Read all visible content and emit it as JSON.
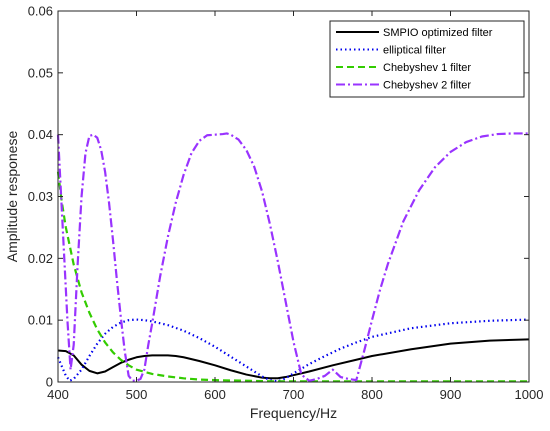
{
  "chart_data": {
    "type": "line",
    "title": "",
    "xlabel": "Frequency/Hz",
    "ylabel": "Amplitude responese",
    "xlim": [
      400,
      1000
    ],
    "ylim": [
      0,
      0.06
    ],
    "xticks": [
      400,
      500,
      600,
      700,
      800,
      900,
      1000
    ],
    "yticks": [
      0,
      0.01,
      0.02,
      0.03,
      0.04,
      0.05,
      0.06
    ],
    "xtick_labels": [
      "400",
      "500",
      "600",
      "700",
      "800",
      "900",
      "1000"
    ],
    "ytick_labels": [
      "0",
      "0.01",
      "0.02",
      "0.03",
      "0.04",
      "0.05",
      "0.06"
    ],
    "grid": false,
    "legend_position": "top-right",
    "series": [
      {
        "name": "SMPIO optimized filter",
        "color": "#000000",
        "style": "solid",
        "x": [
          400,
          410,
          420,
          430,
          440,
          450,
          460,
          470,
          480,
          490,
          500,
          510,
          520,
          530,
          540,
          550,
          560,
          580,
          600,
          620,
          640,
          660,
          670,
          680,
          690,
          700,
          720,
          750,
          780,
          800,
          850,
          900,
          950,
          1000
        ],
        "y": [
          0.0051,
          0.005,
          0.0043,
          0.0028,
          0.0018,
          0.0014,
          0.0017,
          0.0024,
          0.0031,
          0.0036,
          0.004,
          0.0042,
          0.0043,
          0.0043,
          0.0043,
          0.0042,
          0.004,
          0.0034,
          0.0027,
          0.0019,
          0.0012,
          0.0007,
          0.0006,
          0.0006,
          0.0008,
          0.0011,
          0.0017,
          0.0027,
          0.0036,
          0.0042,
          0.0053,
          0.0062,
          0.0067,
          0.0069
        ]
      },
      {
        "name": "elliptical filter",
        "color": "#0000ee",
        "style": "dotted",
        "x": [
          400,
          405,
          410,
          415,
          420,
          430,
          440,
          450,
          460,
          470,
          480,
          490,
          500,
          510,
          520,
          540,
          560,
          580,
          600,
          620,
          640,
          660,
          670,
          680,
          690,
          700,
          720,
          740,
          760,
          780,
          800,
          850,
          900,
          950,
          1000
        ],
        "y": [
          0.004,
          0.0025,
          0.001,
          0.0002,
          0.0005,
          0.002,
          0.0042,
          0.0062,
          0.0078,
          0.0089,
          0.0096,
          0.01,
          0.0101,
          0.01,
          0.0098,
          0.0092,
          0.0083,
          0.0071,
          0.0057,
          0.0041,
          0.0025,
          0.0009,
          0.0003,
          0.0001,
          0.0006,
          0.0014,
          0.0029,
          0.0042,
          0.0054,
          0.0064,
          0.0073,
          0.0087,
          0.0095,
          0.0099,
          0.0101
        ]
      },
      {
        "name": "Chebyshev 1 filter",
        "color": "#33cc00",
        "style": "dashed",
        "x": [
          400,
          405,
          410,
          420,
          430,
          440,
          450,
          460,
          470,
          480,
          490,
          500,
          520,
          540,
          560,
          580,
          600,
          640,
          680,
          700,
          750,
          800,
          850,
          900,
          950,
          1000
        ],
        "y": [
          0.034,
          0.029,
          0.025,
          0.019,
          0.0145,
          0.0112,
          0.0085,
          0.0064,
          0.0048,
          0.0036,
          0.0027,
          0.002,
          0.0013,
          0.0009,
          0.0006,
          0.0004,
          0.0003,
          0.0002,
          0.0001,
          0.0001,
          0.0001,
          0.0001,
          0.0001,
          0.0001,
          0.0001,
          0.0001
        ]
      },
      {
        "name": "Chebyshev 2 filter",
        "color": "#9933ff",
        "style": "dashdot",
        "x": [
          400,
          404,
          408,
          412,
          416,
          420,
          425,
          430,
          435,
          440,
          445,
          450,
          455,
          460,
          465,
          470,
          475,
          480,
          485,
          490,
          495,
          500,
          505,
          510,
          515,
          520,
          530,
          540,
          550,
          560,
          570,
          580,
          590,
          600,
          610,
          615,
          620,
          630,
          640,
          650,
          660,
          670,
          680,
          690,
          700,
          710,
          720,
          730,
          740,
          750,
          760,
          770,
          780,
          790,
          800,
          810,
          820,
          840,
          860,
          880,
          900,
          920,
          940,
          960,
          980,
          1000
        ],
        "y": [
          0.04,
          0.03,
          0.02,
          0.01,
          0.002,
          0.006,
          0.019,
          0.03,
          0.037,
          0.0398,
          0.04,
          0.0395,
          0.0375,
          0.034,
          0.029,
          0.023,
          0.0165,
          0.0105,
          0.005,
          0.001,
          0.0002,
          0.0002,
          0.0005,
          0.002,
          0.006,
          0.0095,
          0.017,
          0.0235,
          0.029,
          0.0335,
          0.037,
          0.039,
          0.0399,
          0.04,
          0.0401,
          0.0402,
          0.04,
          0.0392,
          0.0375,
          0.0348,
          0.0308,
          0.0255,
          0.0195,
          0.013,
          0.0065,
          0.0012,
          0.0002,
          0.0005,
          0.001,
          0.002,
          0.0008,
          0.0005,
          0.0003,
          0.005,
          0.01,
          0.0148,
          0.019,
          0.026,
          0.031,
          0.0347,
          0.0372,
          0.0388,
          0.0397,
          0.0401,
          0.0402,
          0.0402
        ]
      }
    ]
  }
}
